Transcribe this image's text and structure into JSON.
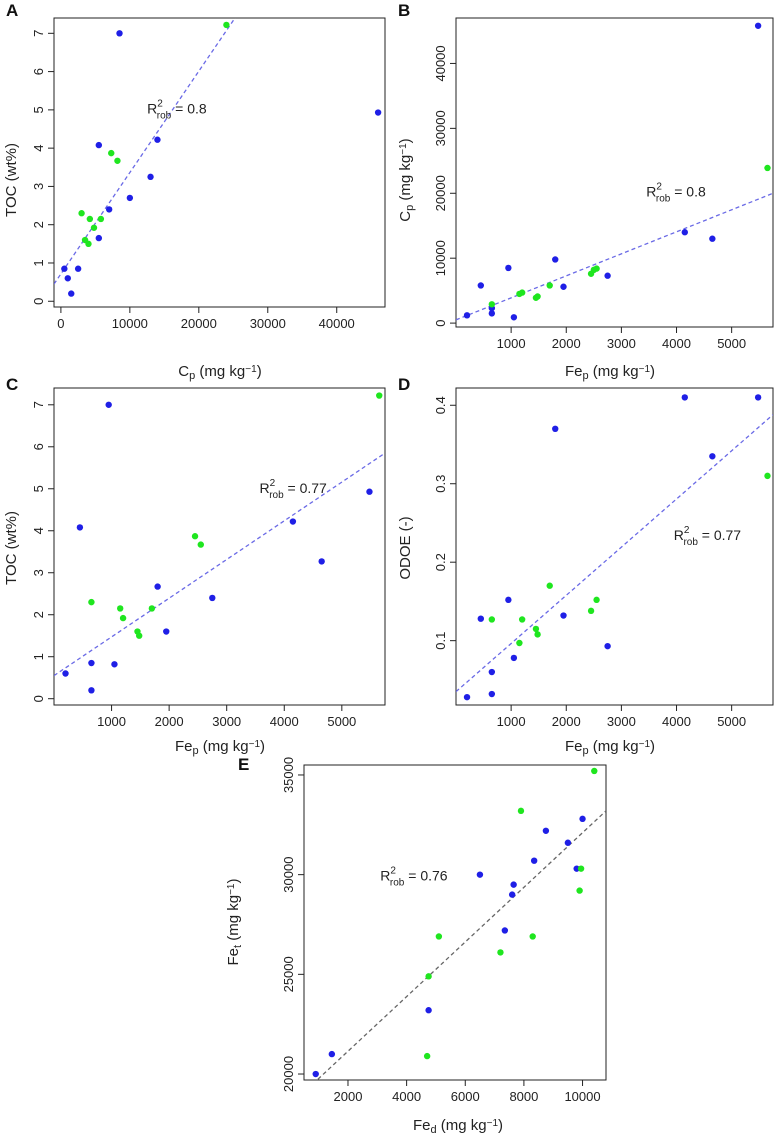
{
  "colors": {
    "blue": "#1f1fe6",
    "green": "#1fe61f",
    "fit_blue": "#6a6ae6",
    "fit_gray": "#666666"
  },
  "chart_data": [
    {
      "id": "A",
      "type": "scatter",
      "letter": "A",
      "xlabel": {
        "main": "C",
        "sub": "p",
        "unit": " (mg kg",
        "sup": "−1",
        "end": ")"
      },
      "ylabel": {
        "main": "TOC (wt%)",
        "sub": "",
        "unit": "",
        "sup": "",
        "end": ""
      },
      "xlim": [
        -1000,
        47000
      ],
      "ylim": [
        -0.15,
        7.4
      ],
      "xticks": [
        0,
        10000,
        20000,
        30000,
        40000
      ],
      "xtick_labels": [
        "0",
        "10000",
        "20000",
        "30000",
        "40000"
      ],
      "yticks": [
        0,
        1,
        2,
        3,
        4,
        5,
        6,
        7
      ],
      "ytick_labels": [
        "0",
        "1",
        "2",
        "3",
        "4",
        "5",
        "6",
        "7"
      ],
      "annotation": {
        "text": "R",
        "sup": "2",
        "sub": "rob",
        "value": " = 0.8",
        "at": [
          12500,
          4.9
        ]
      },
      "fit": {
        "color": "blue",
        "points": [
          [
            -1000,
            0.45
          ],
          [
            26000,
            7.6
          ]
        ]
      },
      "series": [
        {
          "name": "blue",
          "color": "blue",
          "points": [
            [
              500,
              0.85
            ],
            [
              1000,
              0.6
            ],
            [
              1500,
              0.2
            ],
            [
              2500,
              0.85
            ],
            [
              5500,
              1.65
            ],
            [
              7000,
              2.4
            ],
            [
              10000,
              2.7
            ],
            [
              13000,
              3.25
            ],
            [
              14000,
              4.22
            ],
            [
              5500,
              4.08
            ],
            [
              8500,
              7.0
            ],
            [
              46000,
              4.93
            ]
          ]
        },
        {
          "name": "green",
          "color": "green",
          "points": [
            [
              3000,
              2.3
            ],
            [
              3500,
              1.6
            ],
            [
              4000,
              1.5
            ],
            [
              4200,
              2.15
            ],
            [
              4800,
              1.92
            ],
            [
              5800,
              2.15
            ],
            [
              7300,
              3.87
            ],
            [
              8200,
              3.67
            ],
            [
              24000,
              7.22
            ]
          ]
        }
      ]
    },
    {
      "id": "B",
      "type": "scatter",
      "letter": "B",
      "xlabel": {
        "main": "Fe",
        "sub": "p",
        "unit": " (mg kg",
        "sup": "−1",
        "end": ")"
      },
      "ylabel": {
        "main": "C",
        "sub": "p",
        "unit": " (mg kg",
        "sup": "−1",
        "end": ")"
      },
      "xlim": [
        0,
        5750
      ],
      "ylim": [
        -600,
        47000
      ],
      "xticks": [
        1000,
        2000,
        3000,
        4000,
        5000
      ],
      "xtick_labels": [
        "1000",
        "2000",
        "3000",
        "4000",
        "5000"
      ],
      "yticks": [
        0,
        10000,
        20000,
        30000,
        40000
      ],
      "ytick_labels": [
        "0",
        "10000",
        "20000",
        "30000",
        "40000"
      ],
      "annotation": {
        "text": "R",
        "sup": "2",
        "sub": "rob",
        "value": " = 0.8",
        "at": [
          3450,
          19500
        ]
      },
      "fit": {
        "color": "blue",
        "points": [
          [
            0,
            500
          ],
          [
            5750,
            20000
          ]
        ]
      },
      "series": [
        {
          "name": "blue",
          "color": "blue",
          "points": [
            [
              200,
              1200
            ],
            [
              450,
              5800
            ],
            [
              650,
              1500
            ],
            [
              650,
              2300
            ],
            [
              950,
              8500
            ],
            [
              1050,
              900
            ],
            [
              1800,
              9800
            ],
            [
              1950,
              5600
            ],
            [
              2750,
              7300
            ],
            [
              4150,
              14000
            ],
            [
              4650,
              13000
            ],
            [
              5480,
              45800
            ]
          ]
        },
        {
          "name": "green",
          "color": "green",
          "points": [
            [
              650,
              2900
            ],
            [
              1150,
              4500
            ],
            [
              1200,
              4700
            ],
            [
              1450,
              3900
            ],
            [
              1480,
              4100
            ],
            [
              1700,
              5800
            ],
            [
              2450,
              7600
            ],
            [
              2500,
              8200
            ],
            [
              2550,
              8400
            ],
            [
              5650,
              23900
            ]
          ]
        }
      ]
    },
    {
      "id": "C",
      "type": "scatter",
      "letter": "C",
      "xlabel": {
        "main": "Fe",
        "sub": "p",
        "unit": " (mg kg",
        "sup": "−1",
        "end": ")"
      },
      "ylabel": {
        "main": "TOC (wt%)",
        "sub": "",
        "unit": "",
        "sup": "",
        "end": ""
      },
      "xlim": [
        0,
        5750
      ],
      "ylim": [
        -0.15,
        7.4
      ],
      "xticks": [
        1000,
        2000,
        3000,
        4000,
        5000
      ],
      "xtick_labels": [
        "1000",
        "2000",
        "3000",
        "4000",
        "5000"
      ],
      "yticks": [
        0,
        1,
        2,
        3,
        4,
        5,
        6,
        7
      ],
      "ytick_labels": [
        "0",
        "1",
        "2",
        "3",
        "4",
        "5",
        "6",
        "7"
      ],
      "annotation": {
        "text": "R",
        "sup": "2",
        "sub": "rob",
        "value": " = 0.77",
        "at": [
          3570,
          4.9
        ]
      },
      "fit": {
        "color": "blue",
        "points": [
          [
            0,
            0.55
          ],
          [
            5750,
            5.85
          ]
        ]
      },
      "series": [
        {
          "name": "blue",
          "color": "blue",
          "points": [
            [
              200,
              0.6
            ],
            [
              450,
              4.08
            ],
            [
              650,
              0.85
            ],
            [
              650,
              0.2
            ],
            [
              950,
              7.0
            ],
            [
              1050,
              0.82
            ],
            [
              1800,
              2.67
            ],
            [
              1950,
              1.6
            ],
            [
              2750,
              2.4
            ],
            [
              4150,
              4.22
            ],
            [
              4650,
              3.27
            ],
            [
              5480,
              4.93
            ]
          ]
        },
        {
          "name": "green",
          "color": "green",
          "points": [
            [
              650,
              2.3
            ],
            [
              1150,
              2.15
            ],
            [
              1200,
              1.92
            ],
            [
              1450,
              1.6
            ],
            [
              1480,
              1.5
            ],
            [
              1700,
              2.15
            ],
            [
              2450,
              3.87
            ],
            [
              2550,
              3.67
            ],
            [
              5650,
              7.22
            ]
          ]
        }
      ]
    },
    {
      "id": "D",
      "type": "scatter",
      "letter": "D",
      "xlabel": {
        "main": "Fe",
        "sub": "p",
        "unit": " (mg kg",
        "sup": "−1",
        "end": ")"
      },
      "ylabel": {
        "main": "ODOE (-)",
        "sub": "",
        "unit": "",
        "sup": "",
        "end": ""
      },
      "xlim": [
        0,
        5750
      ],
      "ylim": [
        0.018,
        0.422
      ],
      "xticks": [
        1000,
        2000,
        3000,
        4000,
        5000
      ],
      "xtick_labels": [
        "1000",
        "2000",
        "3000",
        "4000",
        "5000"
      ],
      "yticks": [
        0.1,
        0.2,
        0.3,
        0.4
      ],
      "ytick_labels": [
        "0.1",
        "0.2",
        "0.3",
        "0.4"
      ],
      "annotation": {
        "text": "R",
        "sup": "2",
        "sub": "rob",
        "value": " = 0.77",
        "at": [
          3950,
          0.228
        ]
      },
      "fit": {
        "color": "blue",
        "points": [
          [
            0,
            0.035
          ],
          [
            5750,
            0.388
          ]
        ]
      },
      "series": [
        {
          "name": "blue",
          "color": "blue",
          "points": [
            [
              200,
              0.028
            ],
            [
              450,
              0.128
            ],
            [
              650,
              0.06
            ],
            [
              650,
              0.032
            ],
            [
              950,
              0.152
            ],
            [
              1050,
              0.078
            ],
            [
              1800,
              0.37
            ],
            [
              1950,
              0.132
            ],
            [
              2750,
              0.093
            ],
            [
              4150,
              0.41
            ],
            [
              4650,
              0.335
            ],
            [
              5480,
              0.41
            ]
          ]
        },
        {
          "name": "green",
          "color": "green",
          "points": [
            [
              650,
              0.127
            ],
            [
              1150,
              0.097
            ],
            [
              1200,
              0.127
            ],
            [
              1450,
              0.115
            ],
            [
              1480,
              0.108
            ],
            [
              1700,
              0.17
            ],
            [
              2450,
              0.138
            ],
            [
              2550,
              0.152
            ],
            [
              5650,
              0.31
            ]
          ]
        }
      ]
    },
    {
      "id": "E",
      "type": "scatter",
      "letter": "E",
      "xlabel": {
        "main": "Fe",
        "sub": "d",
        "unit": " (mg kg",
        "sup": "−1",
        "end": ")"
      },
      "ylabel": {
        "main": "Fe",
        "sub": "t",
        "unit": " (mg kg",
        "sup": "−1",
        "end": ")"
      },
      "xlim": [
        500,
        10800
      ],
      "ylim": [
        19700,
        35500
      ],
      "xticks": [
        2000,
        4000,
        6000,
        8000,
        10000
      ],
      "xtick_labels": [
        "2000",
        "4000",
        "6000",
        "8000",
        "10000"
      ],
      "yticks": [
        20000,
        25000,
        30000,
        35000
      ],
      "ytick_labels": [
        "20000",
        "25000",
        "30000",
        "35000"
      ],
      "annotation": {
        "text": "R",
        "sup": "2",
        "sub": "rob",
        "value": " = 0.76",
        "at": [
          3100,
          29700
        ]
      },
      "fit": {
        "color": "gray",
        "points": [
          [
            800,
            19500
          ],
          [
            10800,
            33200
          ]
        ]
      },
      "series": [
        {
          "name": "blue",
          "color": "blue",
          "points": [
            [
              900,
              20000
            ],
            [
              1450,
              21000
            ],
            [
              4750,
              23200
            ],
            [
              6500,
              30000
            ],
            [
              7350,
              27200
            ],
            [
              7600,
              29000
            ],
            [
              7650,
              29500
            ],
            [
              8350,
              30700
            ],
            [
              8750,
              32200
            ],
            [
              9500,
              31600
            ],
            [
              9800,
              30300
            ],
            [
              10000,
              32800
            ]
          ]
        },
        {
          "name": "green",
          "color": "green",
          "points": [
            [
              4700,
              20900
            ],
            [
              4750,
              24900
            ],
            [
              5100,
              26900
            ],
            [
              7200,
              26100
            ],
            [
              7900,
              33200
            ],
            [
              8300,
              26900
            ],
            [
              9900,
              29200
            ],
            [
              9950,
              30300
            ],
            [
              10400,
              35200
            ]
          ]
        }
      ]
    }
  ]
}
